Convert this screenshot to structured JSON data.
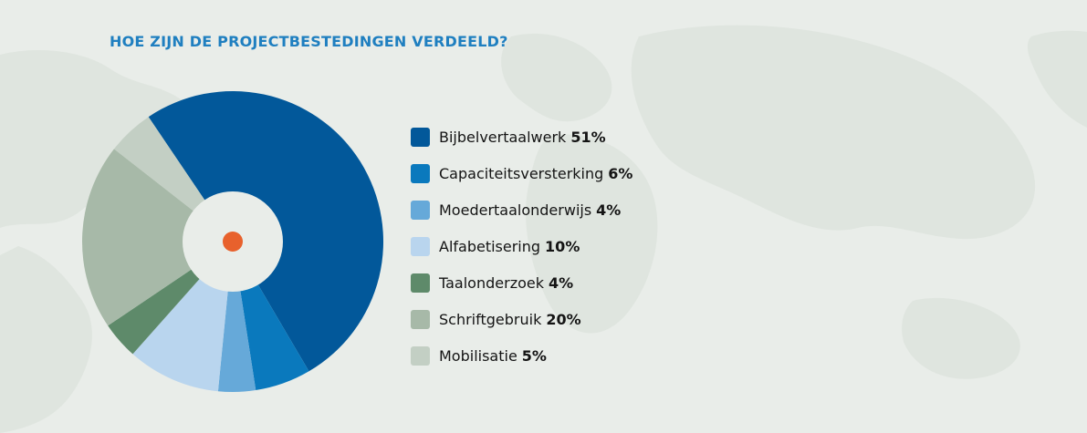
{
  "title": "HOE ZIJN DE PROJECTBESTEDINGEN VERDEELD?",
  "colors": {
    "background": "#e9ede9",
    "title": "#1f7fc0",
    "center_dot": "#e8612c",
    "hole": "#e9ede9"
  },
  "chart_data": {
    "type": "pie",
    "title": "HOE ZIJN DE PROJECTBESTEDINGEN VERDEELD?",
    "legend_position": "right",
    "slices": [
      {
        "label": "Bijbelvertaalwerk",
        "value": 51,
        "value_label": "51%",
        "color": "#02589a"
      },
      {
        "label": "Capaciteitsversterking",
        "value": 6,
        "value_label": "6%",
        "color": "#0a79bd"
      },
      {
        "label": "Moedertaalonderwijs",
        "value": 4,
        "value_label": "4%",
        "color": "#66a9d9"
      },
      {
        "label": "Alfabetisering",
        "value": 10,
        "value_label": "10%",
        "color": "#b9d5ee"
      },
      {
        "label": "Taalonderzoek",
        "value": 4,
        "value_label": "4%",
        "color": "#5e8a6a"
      },
      {
        "label": "Schriftgebruik",
        "value": 20,
        "value_label": "20%",
        "color": "#a7b9a8"
      },
      {
        "label": "Mobilisatie",
        "value": 5,
        "value_label": "5%",
        "color": "#c3cfc4"
      }
    ]
  }
}
